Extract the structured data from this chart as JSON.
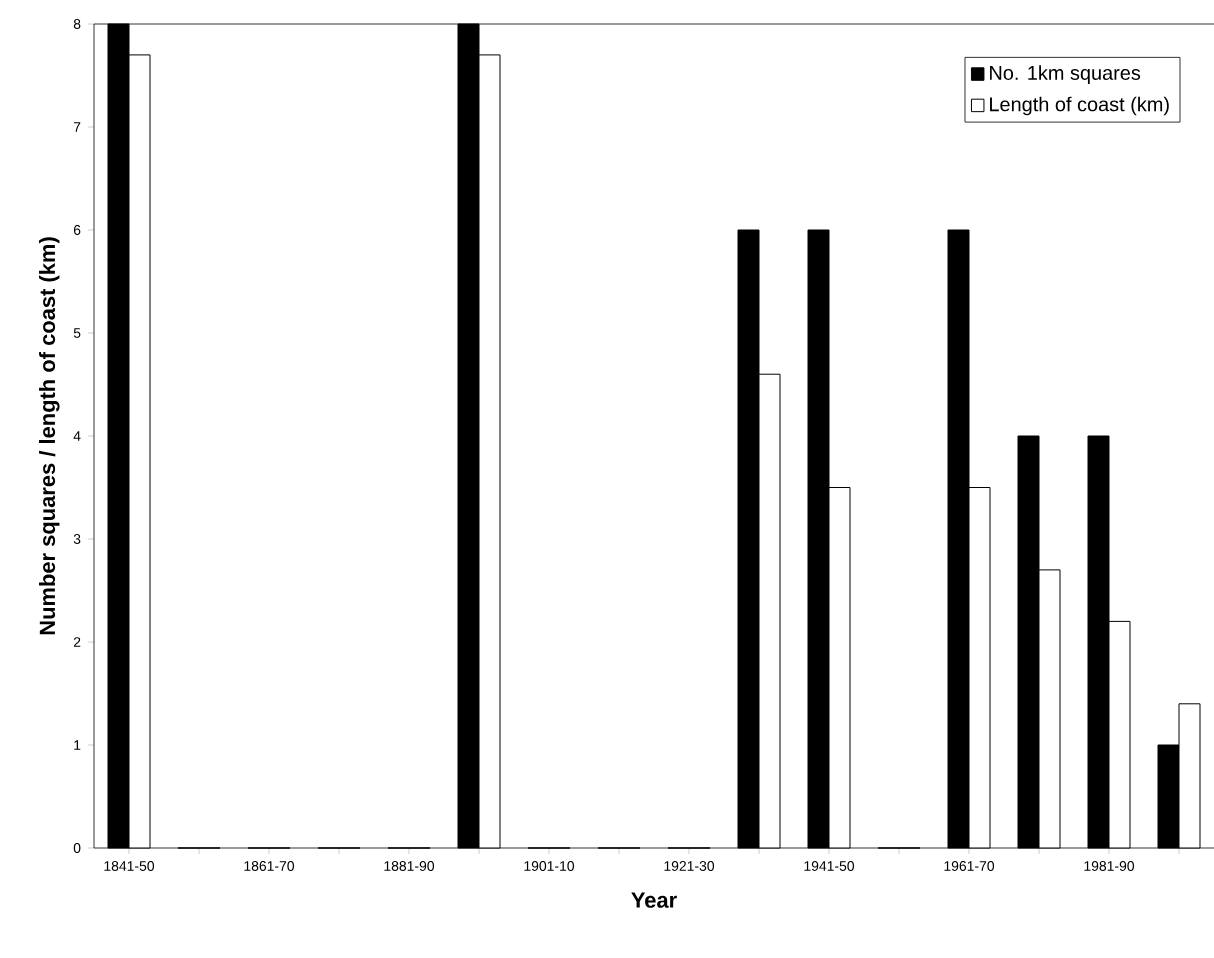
{
  "chart_data": {
    "type": "bar",
    "xlabel": "Year",
    "ylabel": "Number squares / length of coast (km)",
    "categories": [
      "1841-50",
      null,
      "1861-70",
      null,
      "1881-90",
      null,
      "1901-10",
      null,
      "1921-30",
      null,
      "1941-50",
      null,
      "1961-70",
      null,
      "1981-90",
      null
    ],
    "series": [
      {
        "name": "No. 1km squares",
        "color": "#000000",
        "values": [
          8,
          0,
          0,
          0,
          0,
          8,
          0,
          0,
          0,
          6,
          6,
          0,
          6,
          4,
          4,
          1
        ]
      },
      {
        "name": "Length of coast (km)",
        "color": "#ffffff",
        "values": [
          7.7,
          0,
          0,
          0,
          0,
          7.7,
          0,
          0,
          0,
          4.6,
          3.5,
          0,
          3.5,
          2.7,
          2.2,
          1.4
        ]
      }
    ],
    "ylim": [
      0,
      8
    ],
    "yticks": [
      0,
      1,
      2,
      3,
      4,
      5,
      6,
      7,
      8
    ],
    "grid": false,
    "legend": "top right"
  }
}
